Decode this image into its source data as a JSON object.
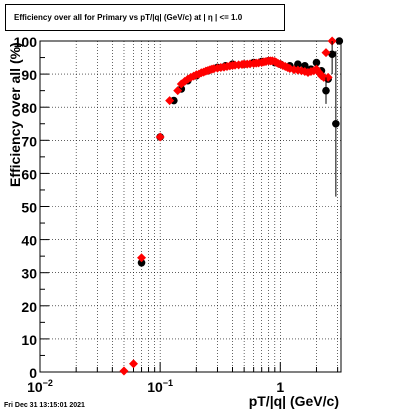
{
  "chart_data": {
    "type": "scatter",
    "title": "Efficiency over all for Primary vs pT/|q| (GeV/c) at |  η | <= 1.0",
    "xlabel": "pT/|q| (GeV/c)",
    "ylabel": "Efficiency over all (%)",
    "xscale": "log",
    "xlim": [
      0.01,
      3.2
    ],
    "ylim": [
      0,
      100
    ],
    "grid": true,
    "x_tick_labels": [
      {
        "x": 0.01,
        "base": "10",
        "exp": "−2"
      },
      {
        "x": 0.1,
        "base": "10",
        "exp": "−1"
      },
      {
        "x": 1,
        "base": "1",
        "exp": ""
      }
    ],
    "y_ticks": [
      0,
      10,
      20,
      30,
      40,
      50,
      60,
      70,
      80,
      90,
      100
    ],
    "series": [
      {
        "marker": "circle",
        "color": "#000000",
        "points": [
          [
            0.07,
            33
          ],
          [
            0.1,
            71
          ],
          [
            0.13,
            82
          ],
          [
            0.15,
            85.5
          ],
          [
            0.17,
            88
          ],
          [
            0.2,
            89.5
          ],
          [
            0.25,
            91
          ],
          [
            0.3,
            92
          ],
          [
            0.35,
            92.5
          ],
          [
            0.4,
            93
          ],
          [
            0.5,
            93
          ],
          [
            0.6,
            93.5
          ],
          [
            0.7,
            93.8
          ],
          [
            0.8,
            94
          ],
          [
            0.9,
            93.5
          ],
          [
            1.0,
            93
          ],
          [
            1.2,
            92.5
          ],
          [
            1.4,
            93
          ],
          [
            1.6,
            92.5
          ],
          [
            1.8,
            91.5
          ],
          [
            2.0,
            93.5
          ],
          [
            2.2,
            91
          ],
          [
            2.4,
            85
          ],
          [
            2.5,
            88.5
          ],
          [
            2.7,
            96
          ],
          [
            2.9,
            75
          ],
          [
            3.1,
            100
          ]
        ]
      },
      {
        "marker": "diamond",
        "color": "#ff0000",
        "points": [
          [
            0.05,
            0.3
          ],
          [
            0.06,
            2.5
          ],
          [
            0.07,
            34.5
          ],
          [
            0.1,
            71
          ],
          [
            0.12,
            82
          ],
          [
            0.14,
            85
          ],
          [
            0.15,
            87
          ],
          [
            0.16,
            87.8
          ],
          [
            0.17,
            88.5
          ],
          [
            0.18,
            89
          ],
          [
            0.19,
            89.4
          ],
          [
            0.2,
            89.8
          ],
          [
            0.21,
            90
          ],
          [
            0.22,
            90.4
          ],
          [
            0.23,
            90.6
          ],
          [
            0.24,
            90.9
          ],
          [
            0.25,
            91.1
          ],
          [
            0.26,
            91.3
          ],
          [
            0.27,
            91.5
          ],
          [
            0.28,
            91.6
          ],
          [
            0.3,
            91.8
          ],
          [
            0.32,
            92
          ],
          [
            0.34,
            92.1
          ],
          [
            0.36,
            92.3
          ],
          [
            0.38,
            92.5
          ],
          [
            0.4,
            92.6
          ],
          [
            0.42,
            92.7
          ],
          [
            0.45,
            92.8
          ],
          [
            0.48,
            92.9
          ],
          [
            0.5,
            93
          ],
          [
            0.53,
            93
          ],
          [
            0.56,
            93.1
          ],
          [
            0.6,
            93.2
          ],
          [
            0.63,
            93.3
          ],
          [
            0.66,
            93.4
          ],
          [
            0.7,
            93.5
          ],
          [
            0.73,
            93.7
          ],
          [
            0.76,
            93.8
          ],
          [
            0.8,
            94
          ],
          [
            0.83,
            94
          ],
          [
            0.86,
            94
          ],
          [
            0.9,
            93.8
          ],
          [
            0.93,
            93.5
          ],
          [
            0.96,
            93.2
          ],
          [
            1.0,
            93
          ],
          [
            1.05,
            92.6
          ],
          [
            1.1,
            92.3
          ],
          [
            1.15,
            92
          ],
          [
            1.2,
            91.7
          ],
          [
            1.3,
            91.3
          ],
          [
            1.4,
            91.2
          ],
          [
            1.5,
            91
          ],
          [
            1.6,
            90.8
          ],
          [
            1.7,
            90.5
          ],
          [
            1.8,
            90.8
          ],
          [
            1.9,
            91
          ],
          [
            2.0,
            91.5
          ],
          [
            2.1,
            90.5
          ],
          [
            2.2,
            89.5
          ],
          [
            2.3,
            89
          ],
          [
            2.4,
            96.5
          ],
          [
            2.5,
            89
          ],
          [
            2.7,
            100
          ]
        ]
      }
    ]
  },
  "footer": {
    "timestamp": "Fri Dec 31 13:15:01 2021"
  }
}
